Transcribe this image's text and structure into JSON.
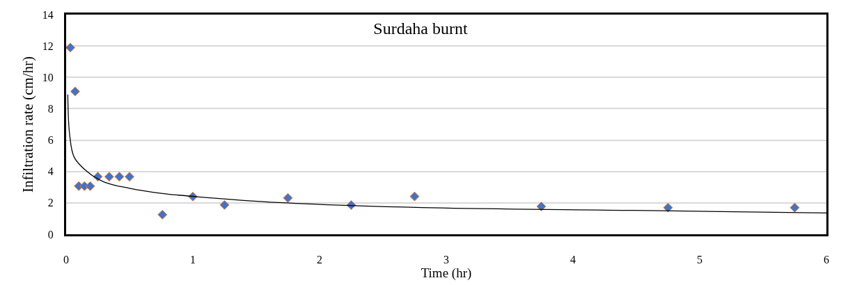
{
  "chart_data": {
    "type": "scatter",
    "title": "Surdaha burnt",
    "xlabel": "Time (hr)",
    "ylabel": "Infiltration rate (cm/hr)",
    "xlim": [
      0,
      6
    ],
    "xticks": [
      0,
      1,
      2,
      3,
      4,
      5,
      6
    ],
    "ylim": [
      0,
      14
    ],
    "yticks": [
      0,
      2,
      4,
      6,
      8,
      10,
      12,
      14
    ],
    "grid": "y",
    "legend": false,
    "series": [
      {
        "marker": "diamond",
        "color": "#4472c4",
        "x": [
          0.033,
          0.071,
          0.1,
          0.145,
          0.19,
          0.25,
          0.34,
          0.42,
          0.5,
          0.76,
          1.0,
          1.25,
          1.75,
          2.25,
          2.75,
          3.75,
          4.75,
          5.75
        ],
        "values": [
          11.9,
          9.1,
          3.07,
          3.07,
          3.07,
          3.67,
          3.67,
          3.67,
          3.67,
          1.25,
          2.4,
          1.87,
          2.32,
          1.86,
          2.41,
          1.77,
          1.7,
          1.7
        ]
      },
      {
        "type": "line",
        "marker": "none",
        "line_style": "solid",
        "color": "#000000",
        "x": [
          0.013,
          0.027,
          0.064,
          0.165,
          0.3,
          0.5,
          0.76,
          1.02,
          1.68,
          2.81,
          4.49,
          6.0
        ],
        "values": [
          8.9,
          6.4,
          4.9,
          4.0,
          3.33,
          2.93,
          2.6,
          2.4,
          2.02,
          1.7,
          1.52,
          1.36
        ]
      }
    ]
  }
}
